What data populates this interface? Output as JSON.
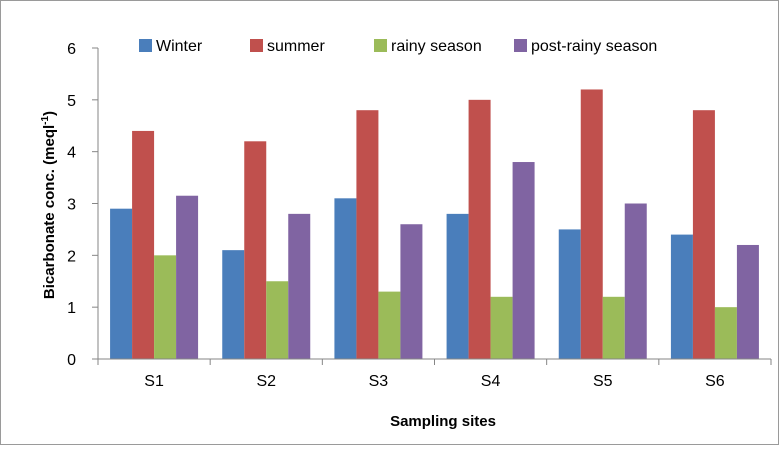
{
  "chart_data": {
    "type": "bar",
    "title": "",
    "xlabel": "Sampling sites",
    "ylabel": "Bicarbonate conc. (meql-1)",
    "ylabel_parts": {
      "main": "Bicarbonate conc. (meql",
      "sup": "-1",
      "close": ")"
    },
    "categories": [
      "S1",
      "S2",
      "S3",
      "S4",
      "S5",
      "S6"
    ],
    "ylim": [
      0,
      6
    ],
    "yticks": [
      0,
      1,
      2,
      3,
      4,
      5,
      6
    ],
    "grid": false,
    "legend_position": "top",
    "series": [
      {
        "name": "Winter",
        "color": "#4a7ebb",
        "values": [
          2.9,
          2.1,
          3.1,
          2.8,
          2.5,
          2.4
        ]
      },
      {
        "name": "summer",
        "color": "#c0504d",
        "values": [
          4.4,
          4.2,
          4.8,
          5.0,
          5.2,
          4.8
        ]
      },
      {
        "name": "rainy season",
        "color": "#9bbb59",
        "values": [
          2.0,
          1.5,
          1.3,
          1.2,
          1.2,
          1.0
        ]
      },
      {
        "name": "post-rainy season",
        "color": "#8064a2",
        "values": [
          3.15,
          2.8,
          2.6,
          3.8,
          3.0,
          2.2
        ]
      }
    ]
  }
}
